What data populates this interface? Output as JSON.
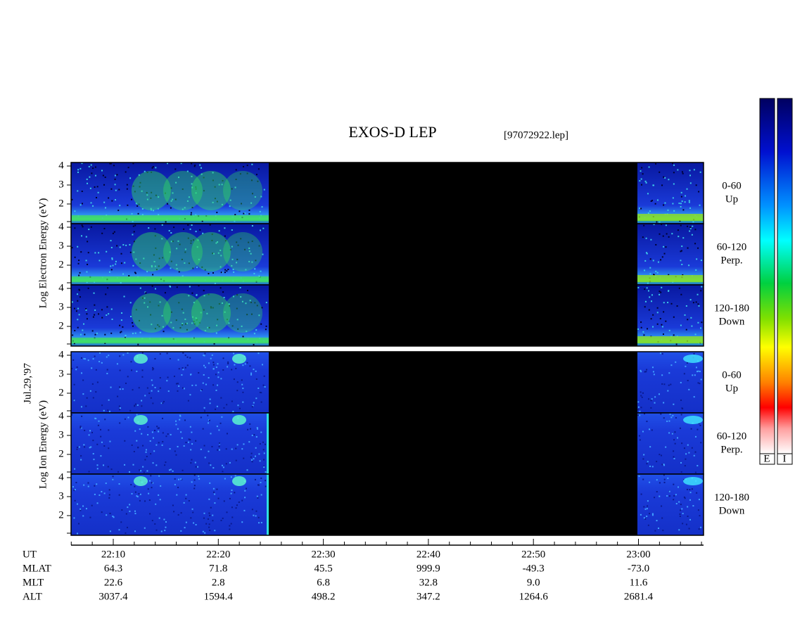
{
  "title": "EXOS-D LEP",
  "file": "[97072922.lep]",
  "date": "Jul.29,'97",
  "electron": {
    "ylabel": "Log   Electron   Energy (eV)",
    "yticks": [
      2,
      3,
      4
    ],
    "panels": [
      {
        "angle": "0-60",
        "direction": "Up"
      },
      {
        "angle": "60-120",
        "direction": "Perp."
      },
      {
        "angle": "120-180",
        "direction": "Down"
      }
    ]
  },
  "ion": {
    "ylabel": "Log   Ion   Energy (eV)",
    "yticks": [
      2,
      3,
      4
    ],
    "panels": [
      {
        "angle": "0-60",
        "direction": "Up"
      },
      {
        "angle": "60-120",
        "direction": "Perp."
      },
      {
        "angle": "120-180",
        "direction": "Down"
      }
    ]
  },
  "x_axis": {
    "rows": [
      {
        "label": "UT",
        "values": [
          "22:10",
          "22:20",
          "22:30",
          "22:40",
          "22:50",
          "23:00"
        ]
      },
      {
        "label": "MLAT",
        "values": [
          "64.3",
          "71.8",
          "45.5",
          "999.9",
          "-49.3",
          "-73.0"
        ]
      },
      {
        "label": "MLT",
        "values": [
          "22.6",
          "2.8",
          "6.8",
          "32.8",
          "9.0",
          "11.6"
        ]
      },
      {
        "label": "ALT",
        "values": [
          "3037.4",
          "1594.4",
          "498.2",
          "347.2",
          "1264.6",
          "2681.4"
        ]
      }
    ]
  },
  "colorbars": [
    "E",
    "I"
  ]
}
